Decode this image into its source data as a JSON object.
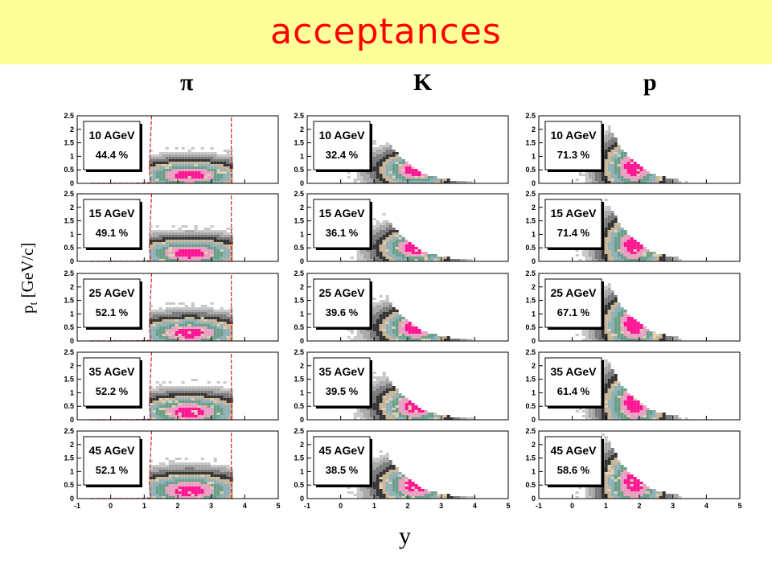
{
  "title": "acceptances",
  "columns": [
    {
      "symbol": "π"
    },
    {
      "symbol": "K"
    },
    {
      "symbol": "p"
    }
  ],
  "ylabel_main": "p",
  "ylabel_sub": "t",
  "ylabel_rest": " [GeV/c]",
  "xlabel": "y",
  "colors": {
    "banner": "#ffff99",
    "title": "#ff0000",
    "acceptance_line": "#cc2222",
    "hist_light": "#c8c8c8",
    "hist_dark": "#333333",
    "hist_peak": "#ff1493"
  },
  "chart_data": {
    "type": "heatmap",
    "description": "",
    "x_ticks": [
      "-1",
      "0",
      "1",
      "2",
      "3",
      "4",
      "5"
    ],
    "y_ticks": [
      "0",
      "0.5",
      "1",
      "1.5",
      "2",
      "2.5"
    ],
    "xlim": [
      -1,
      5
    ],
    "ylim": [
      0,
      2.5
    ],
    "energies": [
      "10 AGeV",
      "15 AGeV",
      "25 AGeV",
      "35 AGeV",
      "45 AGeV"
    ],
    "particles": [
      "π",
      "K",
      "p"
    ],
    "acceptance": {
      "π": [
        "44.4 %",
        "49.1 %",
        "52.1 %",
        "52.2 %",
        "52.1 %"
      ],
      "K": [
        "32.4 %",
        "36.1 %",
        "39.6 %",
        "39.5 %",
        "38.5 %"
      ],
      "p": [
        "71.3 %",
        "71.4 %",
        "67.1 %",
        "61.4 %",
        "58.6 %"
      ]
    }
  }
}
